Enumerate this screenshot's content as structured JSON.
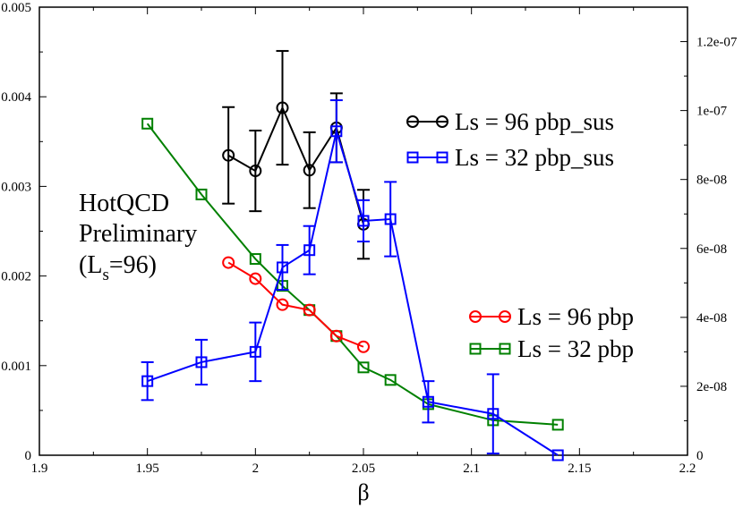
{
  "chart_data": {
    "type": "line",
    "xlabel": "β",
    "ylabel": "",
    "y2label": "",
    "xlim": [
      1.9,
      2.2
    ],
    "ylim": [
      0,
      0.005
    ],
    "y2lim": [
      0,
      1.3e-07
    ],
    "xticks": [
      "1.9",
      "1.95",
      "2",
      "2.05",
      "2.1",
      "2.15",
      "2.2"
    ],
    "yticks": [
      "0",
      "0.001",
      "0.002",
      "0.003",
      "0.004",
      "0.005"
    ],
    "y2ticks": [
      "0",
      "2e-08",
      "4e-08",
      "6e-08",
      "8e-08",
      "1e-07",
      "1.2e-07"
    ],
    "grid": false,
    "annotation": {
      "line1": "HotQCD",
      "line2": "Preliminary",
      "line3_pre": "(L",
      "line3_sub": "s",
      "line3_post": "=96)"
    },
    "series": [
      {
        "name": "Ls = 96 pbp_sus",
        "axis": "right",
        "color": "#000000",
        "marker": "circle",
        "x": [
          1.9875,
          2.0,
          2.0125,
          2.025,
          2.0375,
          2.05
        ],
        "y": [
          8.7e-08,
          8.25e-08,
          1.008e-07,
          8.27e-08,
          9.5e-08,
          6.7e-08
        ],
        "yerr": [
          1.4e-08,
          1.17e-08,
          1.65e-08,
          1.1e-08,
          1e-08,
          1e-08
        ]
      },
      {
        "name": "Ls = 32 pbp_sus",
        "axis": "right",
        "color": "#0000ff",
        "marker": "square",
        "x": [
          1.95,
          1.975,
          2.0,
          2.0125,
          2.025,
          2.0375,
          2.05,
          2.0625,
          2.08,
          2.11,
          2.14
        ],
        "y": [
          2.15e-08,
          2.7e-08,
          3e-08,
          5.45e-08,
          5.95e-08,
          9.4e-08,
          6.8e-08,
          6.85e-08,
          1.55e-08,
          1.2e-08,
          0.0
        ],
        "yerr": [
          5.5e-09,
          6.5e-09,
          8.5e-09,
          6.5e-09,
          7e-09,
          9e-09,
          6e-09,
          1.08e-08,
          6e-09,
          1.15e-08,
          0.0
        ]
      },
      {
        "name": "Ls = 96 pbp",
        "axis": "left",
        "color": "#ff0000",
        "marker": "circle",
        "x": [
          1.9875,
          2.0,
          2.0125,
          2.025,
          2.0375,
          2.05
        ],
        "y": [
          0.00215,
          0.00197,
          0.00168,
          0.00162,
          0.00133,
          0.00121
        ]
      },
      {
        "name": "Ls = 32 pbp",
        "axis": "left",
        "color": "#008000",
        "marker": "square",
        "x": [
          1.95,
          1.975,
          2.0,
          2.0125,
          2.025,
          2.0375,
          2.05,
          2.0625,
          2.08,
          2.11,
          2.14
        ],
        "y": [
          0.0037,
          0.00291,
          0.00219,
          0.00189,
          0.00162,
          0.00133,
          0.00098,
          0.00084,
          0.00057,
          0.00039,
          0.00034
        ]
      }
    ]
  }
}
